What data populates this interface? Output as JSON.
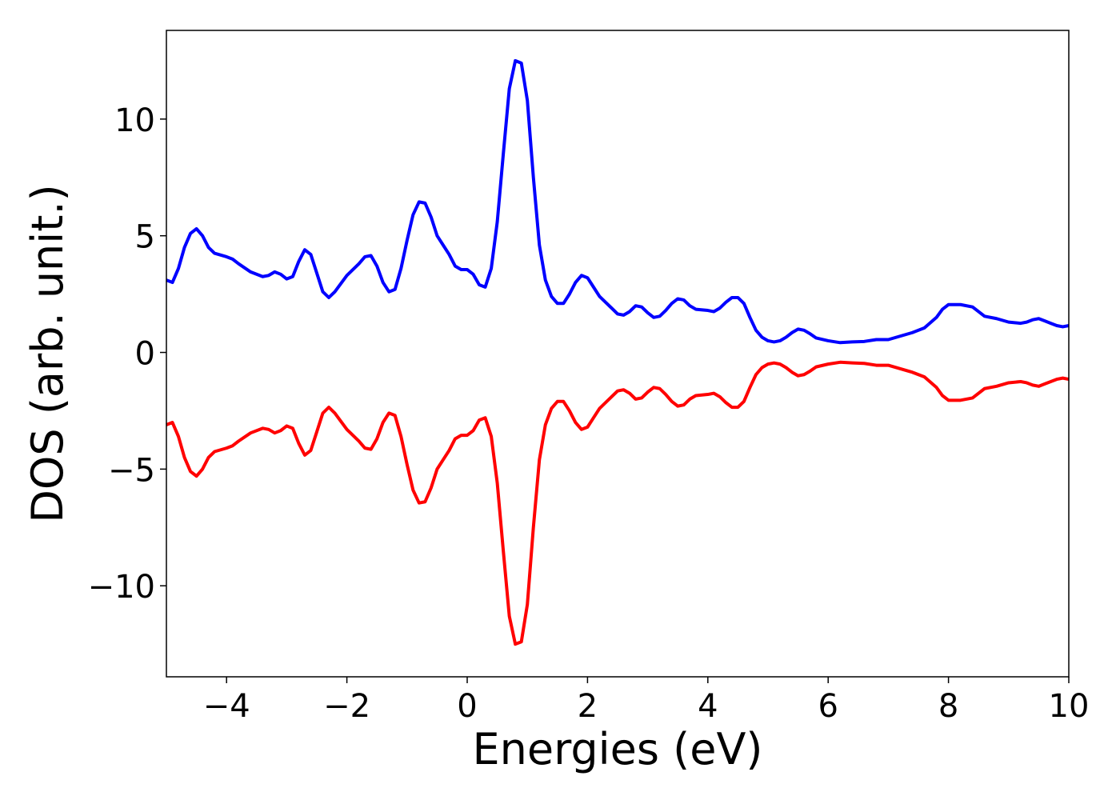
{
  "chart_data": {
    "type": "line",
    "xlabel": "Energies (eV)",
    "ylabel": "DOS (arb. unit.)",
    "xlim": [
      -5,
      10
    ],
    "ylim": [
      -13.9,
      13.8
    ],
    "xticks": [
      {
        "value": -4,
        "label": "−4"
      },
      {
        "value": -2,
        "label": "−2"
      },
      0,
      2,
      4,
      6,
      8,
      10
    ],
    "yticks": [
      {
        "value": -10,
        "label": "−10"
      },
      {
        "value": -5,
        "label": "−5"
      },
      0,
      5,
      10
    ],
    "x": [
      -5,
      -4.9,
      -4.8,
      -4.7,
      -4.6,
      -4.5,
      -4.4,
      -4.3,
      -4.2,
      -4.0,
      -3.9,
      -3.8,
      -3.6,
      -3.4,
      -3.3,
      -3.2,
      -3.1,
      -3.0,
      -2.9,
      -2.8,
      -2.7,
      -2.6,
      -2.5,
      -2.4,
      -2.3,
      -2.2,
      -2.0,
      -1.8,
      -1.7,
      -1.6,
      -1.5,
      -1.4,
      -1.3,
      -1.2,
      -1.1,
      -1.0,
      -0.9,
      -0.8,
      -0.7,
      -0.6,
      -0.5,
      -0.4,
      -0.3,
      -0.2,
      -0.1,
      0.0,
      0.1,
      0.2,
      0.3,
      0.4,
      0.5,
      0.6,
      0.7,
      0.8,
      0.9,
      1.0,
      1.1,
      1.2,
      1.3,
      1.4,
      1.5,
      1.6,
      1.7,
      1.8,
      1.9,
      2.0,
      2.1,
      2.2,
      2.4,
      2.5,
      2.6,
      2.7,
      2.8,
      2.9,
      3.0,
      3.1,
      3.2,
      3.3,
      3.4,
      3.5,
      3.6,
      3.7,
      3.8,
      4.0,
      4.1,
      4.2,
      4.3,
      4.4,
      4.5,
      4.6,
      4.7,
      4.8,
      4.9,
      5.0,
      5.1,
      5.2,
      5.3,
      5.4,
      5.5,
      5.6,
      5.7,
      5.8,
      6.0,
      6.2,
      6.4,
      6.6,
      6.8,
      7.0,
      7.2,
      7.4,
      7.6,
      7.8,
      7.9,
      8.0,
      8.2,
      8.4,
      8.6,
      8.8,
      9.0,
      9.2,
      9.3,
      9.4,
      9.5,
      9.6,
      9.7,
      9.8,
      9.9,
      10.0
    ],
    "series": [
      {
        "color": "#0000ff",
        "values": [
          3.1,
          3.0,
          3.6,
          4.5,
          5.1,
          5.3,
          5.0,
          4.5,
          4.25,
          4.1,
          4.0,
          3.8,
          3.45,
          3.25,
          3.3,
          3.45,
          3.35,
          3.15,
          3.25,
          3.9,
          4.4,
          4.2,
          3.4,
          2.6,
          2.35,
          2.6,
          3.3,
          3.8,
          4.1,
          4.15,
          3.7,
          3.0,
          2.6,
          2.7,
          3.6,
          4.8,
          5.9,
          6.45,
          6.4,
          5.8,
          5.0,
          4.6,
          4.2,
          3.7,
          3.55,
          3.55,
          3.35,
          2.9,
          2.8,
          3.6,
          5.6,
          8.5,
          11.3,
          12.5,
          12.4,
          10.8,
          7.5,
          4.6,
          3.1,
          2.4,
          2.1,
          2.1,
          2.5,
          3.0,
          3.3,
          3.2,
          2.8,
          2.4,
          1.9,
          1.65,
          1.6,
          1.75,
          2.0,
          1.95,
          1.7,
          1.5,
          1.55,
          1.8,
          2.1,
          2.3,
          2.25,
          2.0,
          1.85,
          1.8,
          1.75,
          1.9,
          2.15,
          2.35,
          2.35,
          2.1,
          1.5,
          0.95,
          0.65,
          0.5,
          0.45,
          0.5,
          0.65,
          0.85,
          1.0,
          0.95,
          0.8,
          0.62,
          0.5,
          0.42,
          0.45,
          0.47,
          0.55,
          0.55,
          0.7,
          0.85,
          1.05,
          1.5,
          1.85,
          2.05,
          2.05,
          1.95,
          1.55,
          1.45,
          1.3,
          1.25,
          1.3,
          1.4,
          1.45,
          1.35,
          1.25,
          1.15,
          1.1,
          1.15
        ]
      },
      {
        "color": "#ff0000",
        "values": [
          -3.1,
          -3.0,
          -3.6,
          -4.5,
          -5.1,
          -5.3,
          -5.0,
          -4.5,
          -4.25,
          -4.1,
          -4.0,
          -3.8,
          -3.45,
          -3.25,
          -3.3,
          -3.45,
          -3.35,
          -3.15,
          -3.25,
          -3.9,
          -4.4,
          -4.2,
          -3.4,
          -2.6,
          -2.35,
          -2.6,
          -3.3,
          -3.8,
          -4.1,
          -4.15,
          -3.7,
          -3.0,
          -2.6,
          -2.7,
          -3.6,
          -4.8,
          -5.9,
          -6.45,
          -6.4,
          -5.8,
          -5.0,
          -4.6,
          -4.2,
          -3.7,
          -3.55,
          -3.55,
          -3.35,
          -2.9,
          -2.8,
          -3.6,
          -5.6,
          -8.5,
          -11.3,
          -12.5,
          -12.4,
          -10.8,
          -7.5,
          -4.6,
          -3.1,
          -2.4,
          -2.1,
          -2.1,
          -2.5,
          -3.0,
          -3.3,
          -3.2,
          -2.8,
          -2.4,
          -1.9,
          -1.65,
          -1.6,
          -1.75,
          -2.0,
          -1.95,
          -1.7,
          -1.5,
          -1.55,
          -1.8,
          -2.1,
          -2.3,
          -2.25,
          -2.0,
          -1.85,
          -1.8,
          -1.75,
          -1.9,
          -2.15,
          -2.35,
          -2.35,
          -2.1,
          -1.5,
          -0.95,
          -0.65,
          -0.5,
          -0.45,
          -0.5,
          -0.65,
          -0.85,
          -1.0,
          -0.95,
          -0.8,
          -0.62,
          -0.5,
          -0.42,
          -0.45,
          -0.47,
          -0.55,
          -0.55,
          -0.7,
          -0.85,
          -1.05,
          -1.5,
          -1.85,
          -2.05,
          -2.05,
          -1.95,
          -1.55,
          -1.45,
          -1.3,
          -1.25,
          -1.3,
          -1.4,
          -1.45,
          -1.35,
          -1.25,
          -1.15,
          -1.1,
          -1.15
        ]
      }
    ]
  }
}
